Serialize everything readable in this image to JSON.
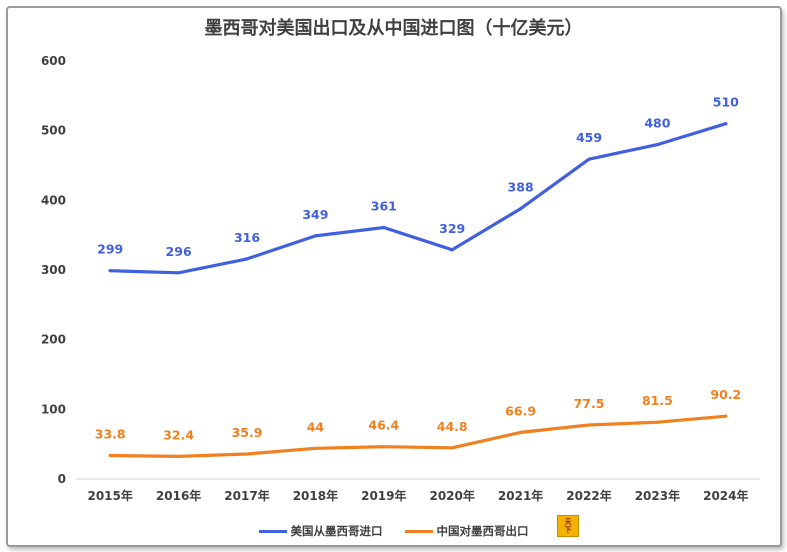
{
  "chart_data": {
    "type": "line",
    "title": "墨西哥对美国出口及从中国进口图（十亿美元）",
    "categories": [
      "2015年",
      "2016年",
      "2017年",
      "2018年",
      "2019年",
      "2020年",
      "2021年",
      "2022年",
      "2023年",
      "2024年"
    ],
    "ylim": [
      0,
      600
    ],
    "yticks": [
      0,
      100,
      200,
      300,
      400,
      500,
      600
    ],
    "grid": false,
    "legend_position": "bottom",
    "series": [
      {
        "name": "美国从墨西哥进口",
        "color": "#4060e0",
        "values": [
          299,
          296,
          316,
          349,
          361,
          329,
          388,
          459,
          480,
          510
        ],
        "labels": [
          "299",
          "296",
          "316",
          "349",
          "361",
          "329",
          "388",
          "459",
          "480",
          "510"
        ]
      },
      {
        "name": "中国对墨西哥出口",
        "color": "#f08020",
        "values": [
          33.8,
          32.4,
          35.9,
          44,
          46.4,
          44.8,
          66.9,
          77.5,
          81.5,
          90.2
        ],
        "labels": [
          "33.8",
          "32.4",
          "35.9",
          "44",
          "46.4",
          "44.8",
          "66.9",
          "77.5",
          "81.5",
          "90.2"
        ]
      }
    ]
  },
  "logo": {
    "text": [
      "天",
      "下",
      "富"
    ]
  }
}
